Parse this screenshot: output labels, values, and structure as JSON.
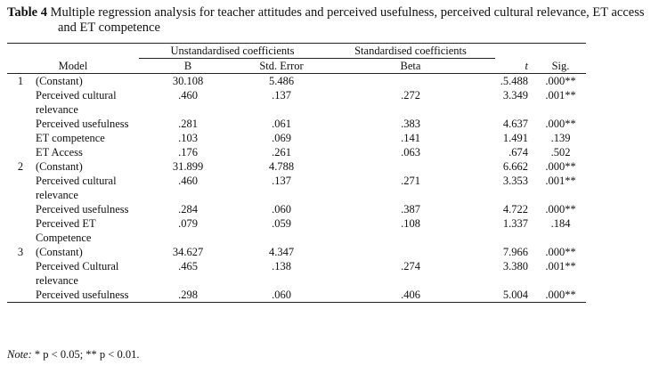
{
  "caption": {
    "label": "Table 4",
    "text": "Multiple regression analysis for teacher attitudes and perceived usefulness, perceived cultural relevance, ET access and ET competence"
  },
  "table": {
    "group_headers": [
      "Unstandardised coefficients",
      "Standardised coefficients"
    ],
    "columns": [
      "Model",
      "B",
      "Std. Error",
      "Beta",
      "t",
      "Sig."
    ],
    "rows": [
      {
        "model": "1",
        "predictor": "(Constant)",
        "b": "30.108",
        "se": "5.486",
        "t": ".5.488",
        "sig": ".000**"
      },
      {
        "predictor": "Perceived cultural relevance",
        "b": ".460",
        "se": ".137",
        "beta": ".272",
        "t": "3.349",
        "sig": ".001**"
      },
      {
        "predictor": "Perceived usefulness",
        "b": ".281",
        "se": ".061",
        "beta": ".383",
        "t": "4.637",
        "sig": ".000**"
      },
      {
        "predictor": "ET competence",
        "b": ".103",
        "se": ".069",
        "beta": ".141",
        "t": "1.491",
        "sig": ".139"
      },
      {
        "predictor": "ET Access",
        "b": ".176",
        "se": ".261",
        "beta": ".063",
        "t": ".674",
        "sig": ".502"
      },
      {
        "model": "2",
        "predictor": "(Constant)",
        "b": "31.899",
        "se": "4.788",
        "t": "6.662",
        "sig": ".000**"
      },
      {
        "predictor": "Perceived cultural relevance",
        "b": ".460",
        "se": ".137",
        "beta": ".271",
        "t": "3.353",
        "sig": ".001**"
      },
      {
        "predictor": "Perceived usefulness",
        "b": ".284",
        "se": ".060",
        "beta": ".387",
        "t": "4.722",
        "sig": ".000**"
      },
      {
        "predictor": "Perceived ET Competence",
        "b": ".079",
        "se": ".059",
        "beta": ".108",
        "t": "1.337",
        "sig": ".184"
      },
      {
        "model": "3",
        "predictor": "(Constant)",
        "b": "34.627",
        "se": "4.347",
        "t": "7.966",
        "sig": ".000**"
      },
      {
        "predictor": "Perceived Cultural relevance",
        "b": ".465",
        "se": ".138",
        "beta": ".274",
        "t": "3.380",
        "sig": ".001**"
      },
      {
        "predictor": "Perceived usefulness",
        "b": ".298",
        "se": ".060",
        "beta": ".406",
        "t": "5.004",
        "sig": ".000**"
      }
    ]
  },
  "note": {
    "label": "Note:",
    "text": "* p < 0.05; ** p < 0.01."
  }
}
